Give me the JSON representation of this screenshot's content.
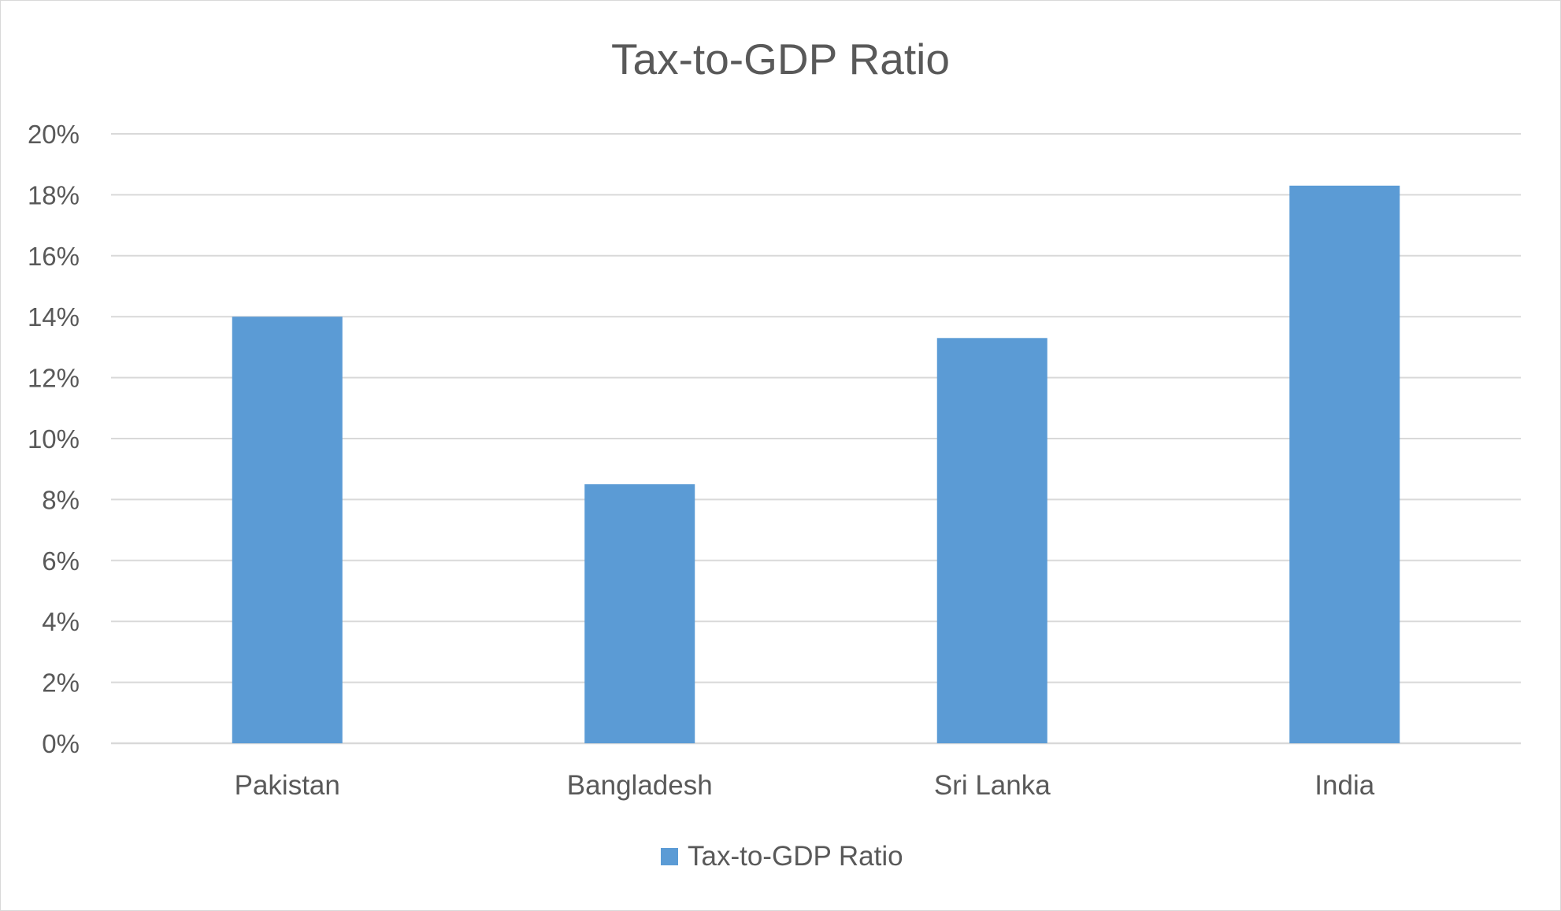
{
  "chart_data": {
    "type": "bar",
    "title": "Tax-to-GDP Ratio",
    "xlabel": "",
    "ylabel": "",
    "categories": [
      "Pakistan",
      "Bangladesh",
      "Sri Lanka",
      "India"
    ],
    "series": [
      {
        "name": "Tax-to-GDP Ratio",
        "values": [
          14.0,
          8.5,
          13.3,
          18.3
        ],
        "color": "#5b9bd5"
      }
    ],
    "ylim": [
      0,
      20
    ],
    "y_ticks": [
      0,
      2,
      4,
      6,
      8,
      10,
      12,
      14,
      16,
      18,
      20
    ],
    "y_tick_format": "percent",
    "grid": true,
    "legend_position": "bottom"
  },
  "colors": {
    "bar": "#5b9bd5",
    "grid": "#d9d9d9",
    "text": "#595959",
    "border": "#d9d9d9"
  }
}
